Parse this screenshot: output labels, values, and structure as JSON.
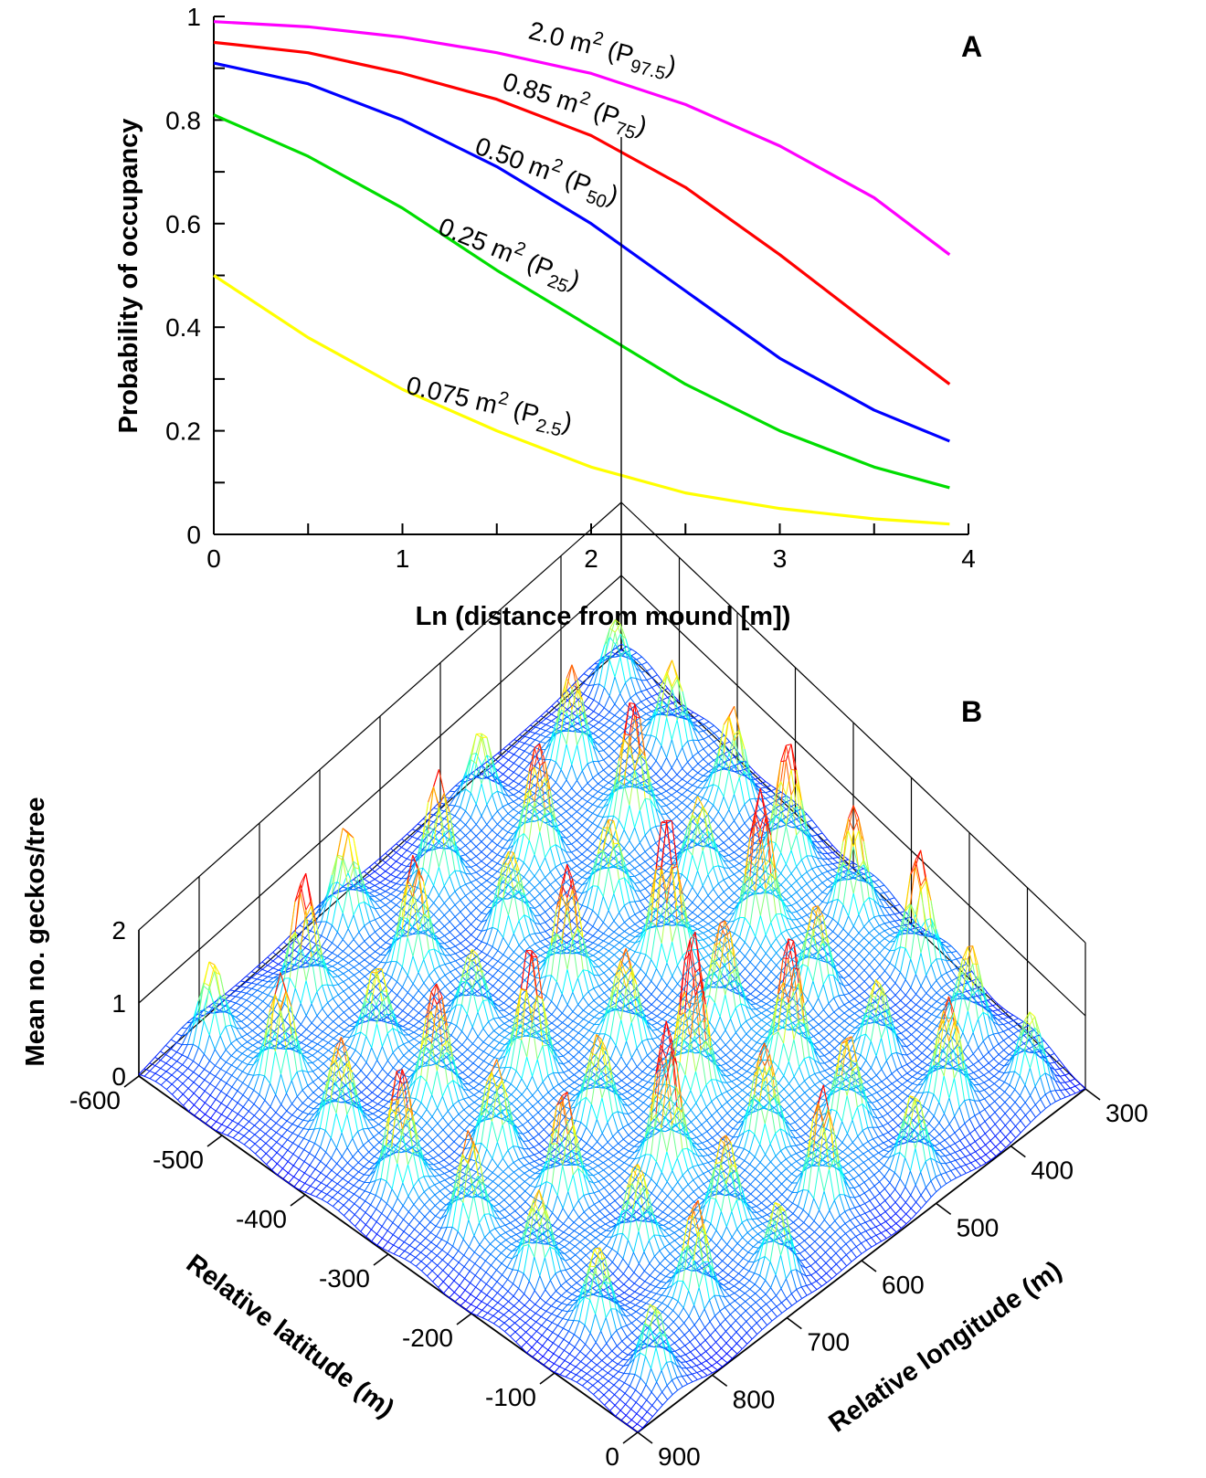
{
  "chart_data": [
    {
      "panel": "A",
      "type": "line",
      "xlabel": "Ln (distance from mound [m])",
      "ylabel": "Probability of occupancy",
      "xlim": [
        0,
        4
      ],
      "ylim": [
        0,
        1
      ],
      "xticks": [
        "0",
        "1",
        "2",
        "3",
        "4"
      ],
      "yticks": [
        "0",
        "0.2",
        "0.4",
        "0.6",
        "0.8",
        "1"
      ],
      "grid": false,
      "x": [
        0,
        0.5,
        1.0,
        1.5,
        2.0,
        2.5,
        3.0,
        3.5,
        3.9
      ],
      "series": [
        {
          "name": "2.0 m² (P97.5)",
          "label": {
            "main": "2.0 m",
            "sup": "2",
            "open": " (P",
            "sub": "97.5",
            "close": ")"
          },
          "color": "#ff00ff",
          "values": [
            0.99,
            0.98,
            0.96,
            0.93,
            0.89,
            0.83,
            0.75,
            0.65,
            0.54
          ]
        },
        {
          "name": "0.85 m² (P75)",
          "label": {
            "main": "0.85 m",
            "sup": "2",
            "open": " (P",
            "sub": "75",
            "close": ")"
          },
          "color": "#ff0000",
          "values": [
            0.95,
            0.93,
            0.89,
            0.84,
            0.77,
            0.67,
            0.54,
            0.4,
            0.29
          ]
        },
        {
          "name": "0.50 m² (P50)",
          "label": {
            "main": "0.50 m",
            "sup": "2",
            "open": " (P",
            "sub": "50",
            "close": ")"
          },
          "color": "#0000ff",
          "values": [
            0.91,
            0.87,
            0.8,
            0.71,
            0.6,
            0.47,
            0.34,
            0.24,
            0.18
          ]
        },
        {
          "name": "0.25 m² (P25)",
          "label": {
            "main": "0.25 m",
            "sup": "2",
            "open": " (P",
            "sub": "25",
            "close": ")"
          },
          "color": "#00dd00",
          "values": [
            0.81,
            0.73,
            0.63,
            0.51,
            0.4,
            0.29,
            0.2,
            0.13,
            0.09
          ]
        },
        {
          "name": "0.075 m² (P2.5)",
          "label": {
            "main": "0.075 m",
            "sup": "2",
            "open": " (P",
            "sub": "2.5",
            "close": ")"
          },
          "color": "#ffff00",
          "values": [
            0.5,
            0.38,
            0.28,
            0.2,
            0.13,
            0.08,
            0.05,
            0.03,
            0.02
          ]
        }
      ]
    },
    {
      "panel": "B",
      "type": "surface",
      "xlabel": "Relative longitude (m)",
      "ylabel": "Relative latitude (m)",
      "zlabel": "Mean no. geckos/tree",
      "xticks": [
        "300",
        "400",
        "500",
        "600",
        "700",
        "800",
        "900"
      ],
      "yticks": [
        "-600",
        "-500",
        "-400",
        "-300",
        "-200",
        "-100",
        "0"
      ],
      "zticks": [
        "0",
        "1",
        "2"
      ],
      "zlim": [
        0,
        2
      ],
      "grid": true,
      "colormap": [
        "#0000ff",
        "#00ffff",
        "#ffff00",
        "#ff0000"
      ],
      "peaks": [
        {
          "a": 0.05,
          "b": 0.06,
          "h": 0.9
        },
        {
          "a": 0.18,
          "b": 0.07,
          "h": 1.1
        },
        {
          "a": 0.31,
          "b": 0.07,
          "h": 1.2
        },
        {
          "a": 0.44,
          "b": 0.08,
          "h": 1.5
        },
        {
          "a": 0.57,
          "b": 0.07,
          "h": 1.4
        },
        {
          "a": 0.7,
          "b": 0.06,
          "h": 1.5
        },
        {
          "a": 0.83,
          "b": 0.08,
          "h": 1.1
        },
        {
          "a": 0.95,
          "b": 0.07,
          "h": 0.9
        },
        {
          "a": 0.1,
          "b": 0.2,
          "h": 1.3
        },
        {
          "a": 0.24,
          "b": 0.21,
          "h": 1.6
        },
        {
          "a": 0.37,
          "b": 0.2,
          "h": 1.0
        },
        {
          "a": 0.5,
          "b": 0.2,
          "h": 1.8
        },
        {
          "a": 0.63,
          "b": 0.21,
          "h": 1.2
        },
        {
          "a": 0.77,
          "b": 0.22,
          "h": 1.0
        },
        {
          "a": 0.9,
          "b": 0.2,
          "h": 1.3
        },
        {
          "a": 0.05,
          "b": 0.34,
          "h": 1.0
        },
        {
          "a": 0.18,
          "b": 0.35,
          "h": 1.5
        },
        {
          "a": 0.31,
          "b": 0.33,
          "h": 1.1
        },
        {
          "a": 0.44,
          "b": 0.34,
          "h": 1.9
        },
        {
          "a": 0.57,
          "b": 0.35,
          "h": 1.3
        },
        {
          "a": 0.7,
          "b": 0.34,
          "h": 1.7
        },
        {
          "a": 0.83,
          "b": 0.35,
          "h": 1.2
        },
        {
          "a": 0.95,
          "b": 0.33,
          "h": 1.0
        },
        {
          "a": 0.1,
          "b": 0.48,
          "h": 1.4
        },
        {
          "a": 0.24,
          "b": 0.47,
          "h": 1.1
        },
        {
          "a": 0.37,
          "b": 0.48,
          "h": 1.6
        },
        {
          "a": 0.5,
          "b": 0.49,
          "h": 1.2
        },
        {
          "a": 0.63,
          "b": 0.48,
          "h": 2.0
        },
        {
          "a": 0.77,
          "b": 0.47,
          "h": 1.3
        },
        {
          "a": 0.9,
          "b": 0.48,
          "h": 1.5
        },
        {
          "a": 0.05,
          "b": 0.62,
          "h": 1.2
        },
        {
          "a": 0.18,
          "b": 0.61,
          "h": 1.4
        },
        {
          "a": 0.31,
          "b": 0.62,
          "h": 1.0
        },
        {
          "a": 0.44,
          "b": 0.63,
          "h": 1.7
        },
        {
          "a": 0.57,
          "b": 0.62,
          "h": 1.1
        },
        {
          "a": 0.7,
          "b": 0.61,
          "h": 1.8
        },
        {
          "a": 0.83,
          "b": 0.62,
          "h": 1.2
        },
        {
          "a": 0.95,
          "b": 0.63,
          "h": 1.0
        },
        {
          "a": 0.1,
          "b": 0.76,
          "h": 1.6
        },
        {
          "a": 0.24,
          "b": 0.75,
          "h": 1.1
        },
        {
          "a": 0.37,
          "b": 0.76,
          "h": 1.5
        },
        {
          "a": 0.5,
          "b": 0.77,
          "h": 1.2
        },
        {
          "a": 0.63,
          "b": 0.76,
          "h": 1.4
        },
        {
          "a": 0.77,
          "b": 0.75,
          "h": 1.1
        },
        {
          "a": 0.9,
          "b": 0.76,
          "h": 1.3
        },
        {
          "a": 0.05,
          "b": 0.9,
          "h": 1.1
        },
        {
          "a": 0.18,
          "b": 0.89,
          "h": 1.4
        },
        {
          "a": 0.31,
          "b": 0.9,
          "h": 1.2
        },
        {
          "a": 0.44,
          "b": 0.91,
          "h": 1.5
        },
        {
          "a": 0.57,
          "b": 0.9,
          "h": 1.3
        },
        {
          "a": 0.7,
          "b": 0.89,
          "h": 1.1
        },
        {
          "a": 0.83,
          "b": 0.9,
          "h": 1.0
        },
        {
          "a": 0.95,
          "b": 0.91,
          "h": 0.9
        }
      ]
    }
  ]
}
